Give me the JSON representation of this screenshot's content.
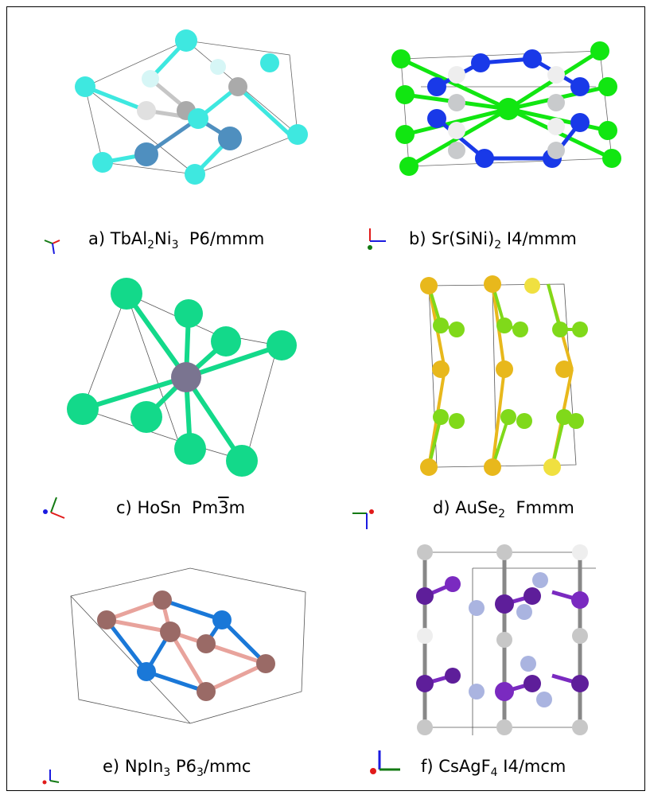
{
  "panels": [
    {
      "letter": "a)",
      "formula": [
        [
          "TbAl",
          ""
        ],
        [
          "2",
          "sub"
        ],
        [
          "Ni",
          ""
        ],
        [
          "3",
          "sub"
        ]
      ],
      "space_group": "P6/mmm",
      "colors": {
        "a": "#3ee8e0",
        "b": "#4f8fbf",
        "c": "#c6c6c6"
      }
    },
    {
      "letter": "b)",
      "formula": [
        [
          "Sr(SiNi)",
          ""
        ],
        [
          "2",
          "sub"
        ]
      ],
      "space_group": "I4/mmm",
      "colors": {
        "a": "#11e611",
        "b": "#1939e8",
        "c": "#c8cacc"
      }
    },
    {
      "letter": "c)",
      "formula": [
        [
          "HoSn",
          ""
        ]
      ],
      "space_group_parts": [
        "Pm",
        "3",
        "m"
      ],
      "colors": {
        "a": "#13d98a",
        "b": "#7a7490"
      }
    },
    {
      "letter": "d)",
      "formula": [
        [
          "AuSe",
          ""
        ],
        [
          "2",
          "sub"
        ]
      ],
      "space_group": "Fmmm",
      "colors": {
        "a": "#80d91a",
        "b": "#e8b81c"
      }
    },
    {
      "letter": "e)",
      "formula": [
        [
          "NpIn",
          ""
        ],
        [
          "3",
          "sub"
        ]
      ],
      "space_group_parts": [
        "P6",
        "3",
        "/mmc"
      ],
      "colors": {
        "a": "#9a6a66",
        "b": "#1a78d8",
        "bond": "#e8a39c"
      }
    },
    {
      "letter": "f)",
      "formula": [
        [
          "CsAgF",
          ""
        ],
        [
          "4",
          "sub"
        ]
      ],
      "space_group": "I4/mcm",
      "colors": {
        "a": "#c7c7c7",
        "b": "#5e1e9a",
        "c": "#aab4e0"
      }
    }
  ],
  "axis_colors": {
    "x": "#e11a1a",
    "y": "#137a13",
    "z": "#1a1ae0"
  }
}
